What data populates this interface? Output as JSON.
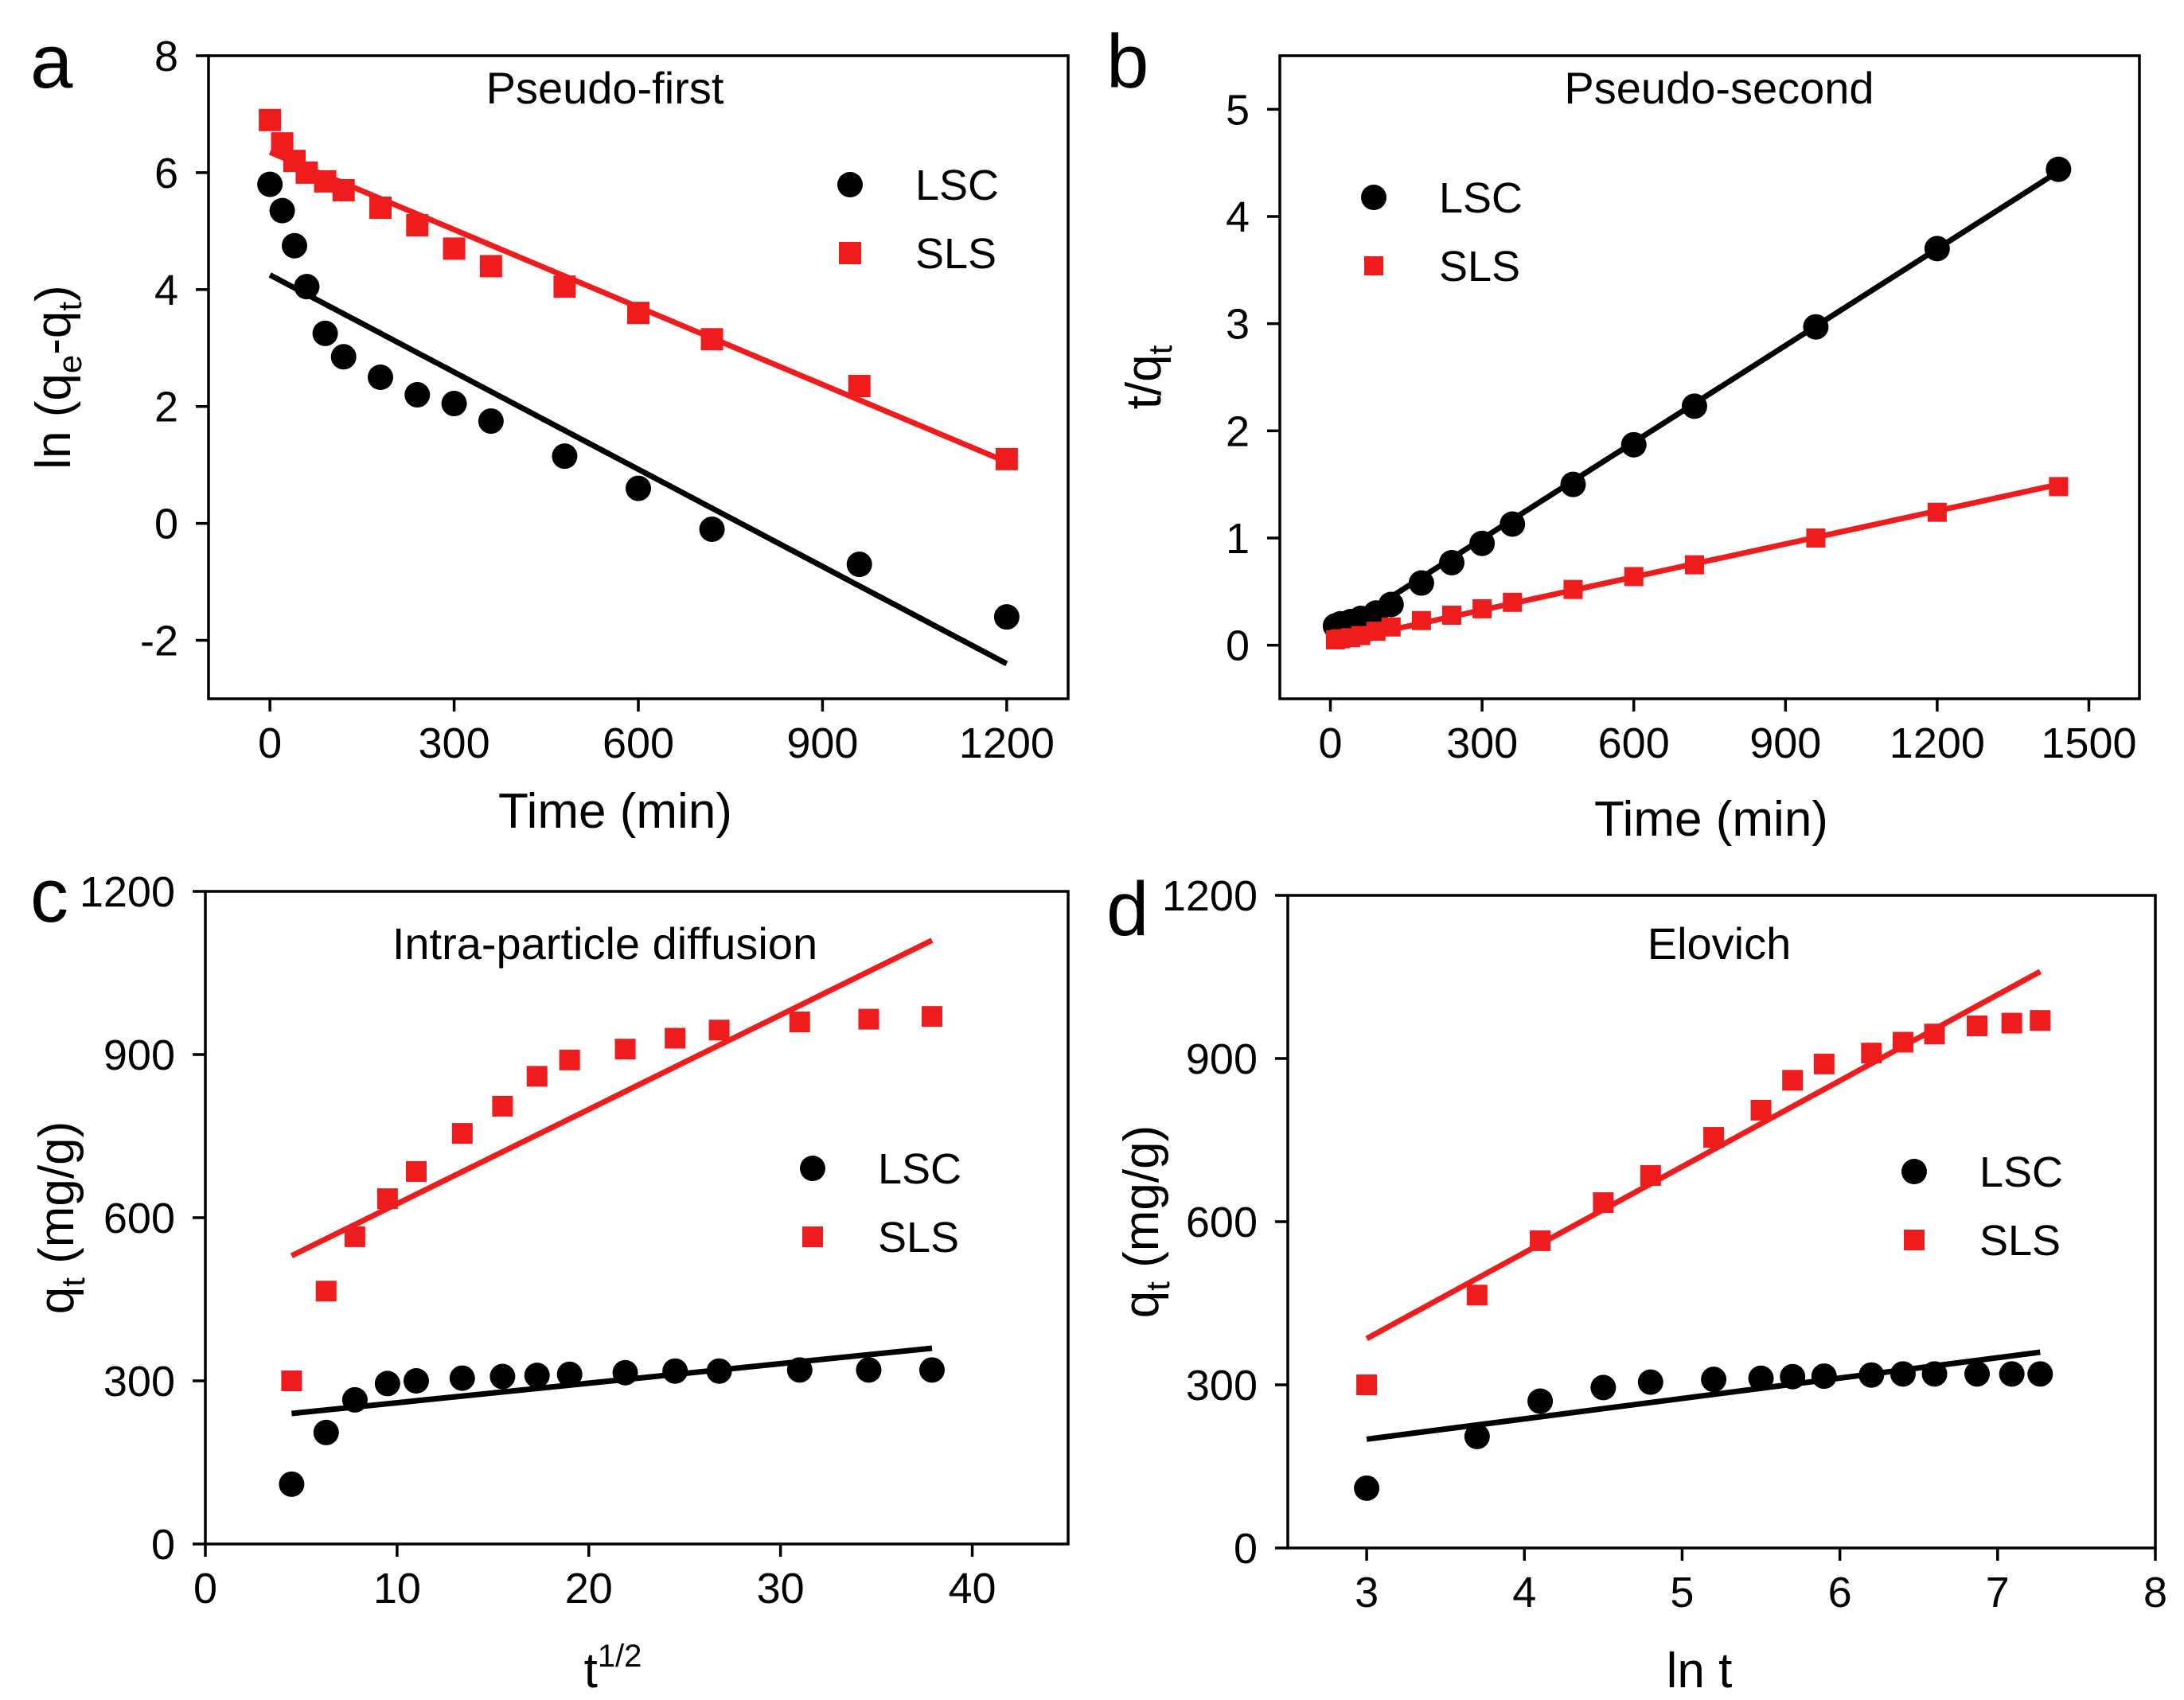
{
  "colors": {
    "lsc": "#000000",
    "sls": "#ee1c1c",
    "axis": "#000000",
    "background": "#ffffff"
  },
  "chart_data": [
    {
      "panel": "a",
      "type": "scatter",
      "title": "Pseudo-first",
      "xlabel": "Time (min)",
      "ylabel_main": "ln (q",
      "ylabel_sub1": "e",
      "ylabel_mid": "-q",
      "ylabel_sub2": "t",
      "ylabel_end": ")",
      "xlim": [
        -100,
        1300
      ],
      "ylim": [
        -3,
        8
      ],
      "xticks": [
        0,
        300,
        600,
        900,
        1200
      ],
      "xtick_labels": [
        "0",
        "300",
        "600",
        "900",
        "1200"
      ],
      "yticks": [
        -2,
        0,
        2,
        4,
        6,
        8
      ],
      "ytick_labels": [
        "-2",
        "0",
        "2",
        "4",
        "6",
        "8"
      ],
      "legend_position": "top-right",
      "series": [
        {
          "name": "LSC",
          "marker": "circle",
          "color_key": "lsc",
          "x": [
            0,
            20,
            40,
            60,
            90,
            120,
            180,
            240,
            300,
            360,
            480,
            600,
            720,
            960,
            1200
          ],
          "y": [
            5.8,
            5.35,
            4.75,
            4.05,
            3.25,
            2.85,
            2.5,
            2.2,
            2.05,
            1.75,
            1.15,
            0.6,
            -0.1,
            -0.7,
            -1.6
          ],
          "fit": {
            "x": [
              0,
              1200
            ],
            "y": [
              4.25,
              -2.4
            ]
          }
        },
        {
          "name": "SLS",
          "marker": "square",
          "color_key": "sls",
          "x": [
            0,
            20,
            40,
            60,
            90,
            120,
            180,
            240,
            300,
            360,
            480,
            600,
            720,
            960,
            1200
          ],
          "y": [
            6.9,
            6.5,
            6.2,
            6.0,
            5.85,
            5.7,
            5.4,
            5.1,
            4.7,
            4.4,
            4.05,
            3.6,
            3.15,
            2.35,
            1.1
          ],
          "fit": {
            "x": [
              0,
              1200
            ],
            "y": [
              6.35,
              1.05
            ]
          }
        }
      ]
    },
    {
      "panel": "b",
      "type": "scatter",
      "title": "Pseudo-second",
      "xlabel": "Time (min)",
      "ylabel_main": "t/q",
      "ylabel_sub1": "t",
      "xlim": [
        -100,
        1600
      ],
      "ylim": [
        -0.5,
        5.5
      ],
      "xticks": [
        0,
        300,
        600,
        900,
        1200,
        1500
      ],
      "xtick_labels": [
        "0",
        "300",
        "600",
        "900",
        "1200",
        "1500"
      ],
      "yticks": [
        0,
        1,
        2,
        3,
        4,
        5
      ],
      "ytick_labels": [
        "0",
        "1",
        "2",
        "3",
        "4",
        "5"
      ],
      "legend_position": "top-left",
      "series": [
        {
          "name": "LSC",
          "marker": "circle",
          "color_key": "lsc",
          "x": [
            10,
            20,
            40,
            60,
            90,
            120,
            180,
            240,
            300,
            360,
            480,
            600,
            720,
            960,
            1200,
            1440
          ],
          "y": [
            0.18,
            0.2,
            0.22,
            0.25,
            0.3,
            0.38,
            0.58,
            0.77,
            0.95,
            1.13,
            1.5,
            1.87,
            2.23,
            2.97,
            3.7,
            4.44
          ],
          "fit": {
            "x": [
              10,
              1440
            ],
            "y": [
              0.12,
              4.42
            ]
          }
        },
        {
          "name": "SLS",
          "marker": "square",
          "color_key": "sls",
          "x": [
            10,
            20,
            40,
            60,
            90,
            120,
            180,
            240,
            300,
            360,
            480,
            600,
            720,
            960,
            1200,
            1440
          ],
          "y": [
            0.05,
            0.06,
            0.07,
            0.09,
            0.13,
            0.17,
            0.23,
            0.28,
            0.34,
            0.4,
            0.52,
            0.64,
            0.75,
            1.0,
            1.24,
            1.48
          ],
          "fit": {
            "x": [
              10,
              1440
            ],
            "y": [
              0.03,
              1.5
            ]
          }
        }
      ]
    },
    {
      "panel": "c",
      "type": "scatter",
      "title": "Intra-particle diffusion",
      "xlabel_main": "t",
      "xlabel_sup": "1/2",
      "ylabel_main": "q",
      "ylabel_sub1": "t",
      "ylabel_end": " (mg/g)",
      "xlim": [
        0,
        45
      ],
      "ylim": [
        0,
        1200
      ],
      "xticks": [
        0,
        10,
        20,
        30,
        40
      ],
      "xtick_labels": [
        "0",
        "10",
        "20",
        "30",
        "40"
      ],
      "yticks": [
        0,
        300,
        600,
        900,
        1200
      ],
      "ytick_labels": [
        "0",
        "300",
        "600",
        "900",
        "1200"
      ],
      "legend_position": "center-right",
      "series": [
        {
          "name": "LSC",
          "marker": "circle",
          "color_key": "lsc",
          "x": [
            4.5,
            6.3,
            7.8,
            9.5,
            11,
            13.4,
            15.5,
            17.3,
            19,
            21.9,
            24.5,
            26.8,
            31,
            34.6,
            37.9
          ],
          "y": [
            110,
            205,
            265,
            295,
            300,
            305,
            308,
            310,
            312,
            315,
            318,
            318,
            320,
            320,
            320
          ],
          "fit": {
            "x": [
              4.5,
              37.9
            ],
            "y": [
              240,
              360
            ]
          }
        },
        {
          "name": "SLS",
          "marker": "square",
          "color_key": "sls",
          "x": [
            4.5,
            6.3,
            7.8,
            9.5,
            11,
            13.4,
            15.5,
            17.3,
            19,
            21.9,
            24.5,
            26.8,
            31,
            34.6,
            37.9
          ],
          "y": [
            300,
            465,
            565,
            635,
            685,
            755,
            805,
            860,
            890,
            910,
            930,
            945,
            960,
            965,
            970
          ],
          "fit": {
            "x": [
              4.5,
              37.9
            ],
            "y": [
              530,
              1110
            ]
          }
        }
      ]
    },
    {
      "panel": "d",
      "type": "scatter",
      "title": "Elovich",
      "xlabel": "ln t",
      "ylabel_main": "q",
      "ylabel_sub1": "t",
      "ylabel_end": " (mg/g)",
      "xlim": [
        2.5,
        8
      ],
      "ylim": [
        0,
        1200
      ],
      "xticks": [
        3,
        4,
        5,
        6,
        7,
        8
      ],
      "xtick_labels": [
        "3",
        "4",
        "5",
        "6",
        "7",
        "8"
      ],
      "yticks": [
        0,
        300,
        600,
        900,
        1200
      ],
      "ytick_labels": [
        "0",
        "300",
        "600",
        "900",
        "1200"
      ],
      "legend_position": "center-right",
      "series": [
        {
          "name": "LSC",
          "marker": "circle",
          "color_key": "lsc",
          "x": [
            3.0,
            3.7,
            4.1,
            4.5,
            4.8,
            5.2,
            5.5,
            5.7,
            5.9,
            6.2,
            6.4,
            6.6,
            6.87,
            7.09,
            7.27
          ],
          "y": [
            110,
            205,
            270,
            295,
            305,
            310,
            312,
            315,
            316,
            318,
            320,
            320,
            320,
            320,
            320
          ],
          "fit": {
            "x": [
              3.0,
              7.27
            ],
            "y": [
              200,
              360
            ]
          }
        },
        {
          "name": "SLS",
          "marker": "square",
          "color_key": "sls",
          "x": [
            3.0,
            3.7,
            4.1,
            4.5,
            4.8,
            5.2,
            5.5,
            5.7,
            5.9,
            6.2,
            6.4,
            6.6,
            6.87,
            7.09,
            7.27
          ],
          "y": [
            300,
            465,
            565,
            635,
            685,
            755,
            805,
            860,
            890,
            910,
            930,
            945,
            960,
            965,
            970
          ],
          "fit": {
            "x": [
              3.0,
              7.27
            ],
            "y": [
              385,
              1060
            ]
          }
        }
      ]
    }
  ]
}
